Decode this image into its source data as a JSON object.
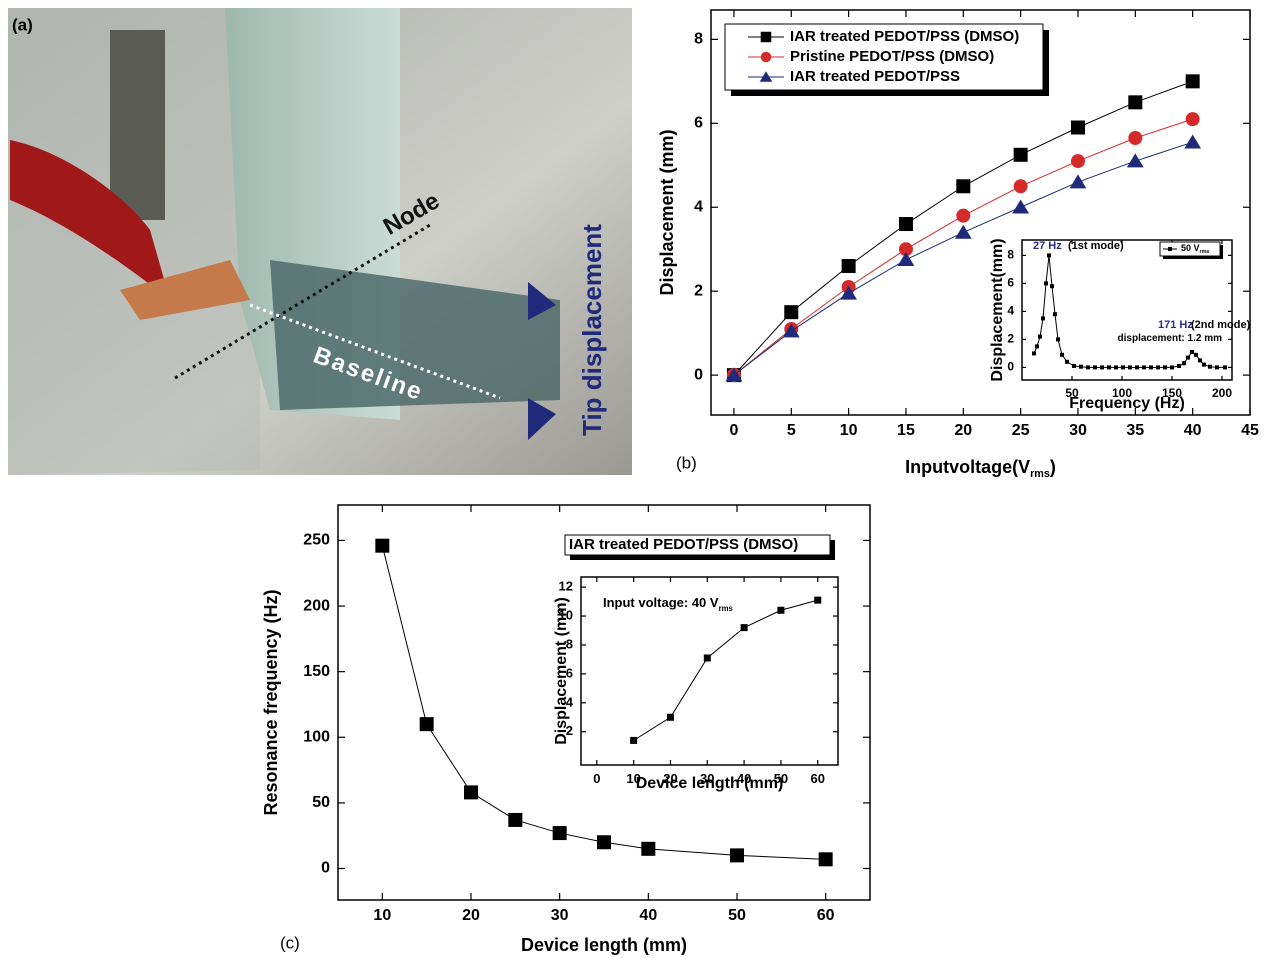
{
  "photo": {
    "label": "(a)",
    "node": "Node",
    "baseline": "Baseline",
    "tip": "Tip displacement"
  },
  "chart_data": [
    {
      "type": "line",
      "label": "(b)",
      "xlabel": "Inputvoltage(V",
      "xlabel_sub": "rms",
      "xlabel_end": ")",
      "ylabel": "Displacement (mm)",
      "xlim": [
        -2,
        45
      ],
      "xticks": [
        0,
        5,
        10,
        15,
        20,
        25,
        30,
        35,
        40,
        45
      ],
      "ylim": [
        -0.95,
        8.7
      ],
      "yticks": [
        0,
        2,
        4,
        6,
        8
      ],
      "legend": "upper left",
      "x": [
        0,
        5,
        10,
        15,
        20,
        25,
        30,
        35,
        40
      ],
      "series": [
        {
          "name": "IAR treated PEDOT/PSS (DMSO)",
          "color": "#000000",
          "marker": "square",
          "values": [
            0,
            1.5,
            2.6,
            3.6,
            4.5,
            5.25,
            5.9,
            6.5,
            7.0
          ]
        },
        {
          "name": "Pristine PEDOT/PSS (DMSO)",
          "color": "#d42a2a",
          "marker": "circle",
          "values": [
            0,
            1.1,
            2.1,
            3.0,
            3.8,
            4.5,
            5.1,
            5.65,
            6.1
          ]
        },
        {
          "name": "IAR treated PEDOT/PSS",
          "color": "#1f2a7a",
          "marker": "triangle",
          "values": [
            0,
            1.05,
            1.95,
            2.75,
            3.4,
            4.0,
            4.6,
            5.1,
            5.55
          ]
        }
      ]
    },
    {
      "type": "line",
      "xlabel": "Frequency (Hz)",
      "ylabel": "Displacement(mm)",
      "xlim": [
        0,
        210
      ],
      "xticks": [
        50,
        100,
        150,
        200
      ],
      "ylim": [
        -0.9,
        9.1
      ],
      "yticks": [
        0,
        2,
        4,
        6,
        8
      ],
      "legend": "upper right",
      "x": [
        12,
        15,
        18,
        21,
        24,
        27,
        30,
        33,
        36,
        40,
        45,
        52,
        59,
        66,
        73,
        80,
        87,
        94,
        101,
        108,
        115,
        122,
        129,
        136,
        143,
        150,
        157,
        162,
        166,
        170,
        174,
        178,
        182,
        188,
        195,
        203
      ],
      "series": [
        {
          "name": "50 V",
          "name_sub": "rms",
          "color": "#000000",
          "marker": "square",
          "values": [
            1.0,
            1.5,
            2.2,
            3.5,
            6.0,
            8.0,
            5.8,
            3.8,
            2.0,
            0.9,
            0.4,
            0.1,
            0.05,
            0,
            0,
            0,
            0,
            0,
            0,
            0,
            0,
            0,
            0,
            0,
            0,
            0,
            0.1,
            0.3,
            0.7,
            1.1,
            0.9,
            0.5,
            0.2,
            0.05,
            0,
            0
          ]
        }
      ],
      "annotations": [
        {
          "text": "27 Hz",
          "color": "#2b2b8c"
        },
        {
          "text": "(1st mode)"
        },
        {
          "text": "171 Hz",
          "color": "#2b2b8c"
        },
        {
          "text": "(2nd mode)"
        },
        {
          "text": "displacement: 1.2 mm"
        }
      ]
    },
    {
      "type": "line",
      "label": "(c)",
      "xlabel": "Device length (mm)",
      "ylabel": "Resonance frequency (Hz)",
      "xlim": [
        5,
        65
      ],
      "xticks": [
        10,
        20,
        30,
        40,
        50,
        60
      ],
      "ylim": [
        -24,
        277
      ],
      "yticks": [
        0,
        50,
        100,
        150,
        200,
        250
      ],
      "legend": "upper right",
      "x": [
        10,
        15,
        20,
        25,
        30,
        35,
        40,
        50,
        60
      ],
      "series": [
        {
          "name": "IAR treated PEDOT/PSS (DMSO)",
          "color": "#000000",
          "marker": "square",
          "values": [
            246,
            110,
            58,
            37,
            27,
            20,
            15,
            10,
            7
          ]
        }
      ]
    },
    {
      "type": "line",
      "xlabel": "Device length (mm)",
      "ylabel": "Displacement (mm)",
      "xlim": [
        -4.3,
        65.5
      ],
      "xticks": [
        0,
        10,
        20,
        30,
        40,
        50,
        60
      ],
      "ylim": [
        -0.3,
        12.7
      ],
      "yticks": [
        2,
        4,
        6,
        8,
        10,
        12
      ],
      "x": [
        10,
        20,
        30,
        40,
        50,
        60
      ],
      "values": [
        1.4,
        3.0,
        7.1,
        9.2,
        10.4,
        11.1
      ],
      "color": "#000000",
      "marker": "square",
      "annotations": [
        {
          "text": "Input voltage: 40 V",
          "sub": "rms"
        }
      ]
    }
  ]
}
